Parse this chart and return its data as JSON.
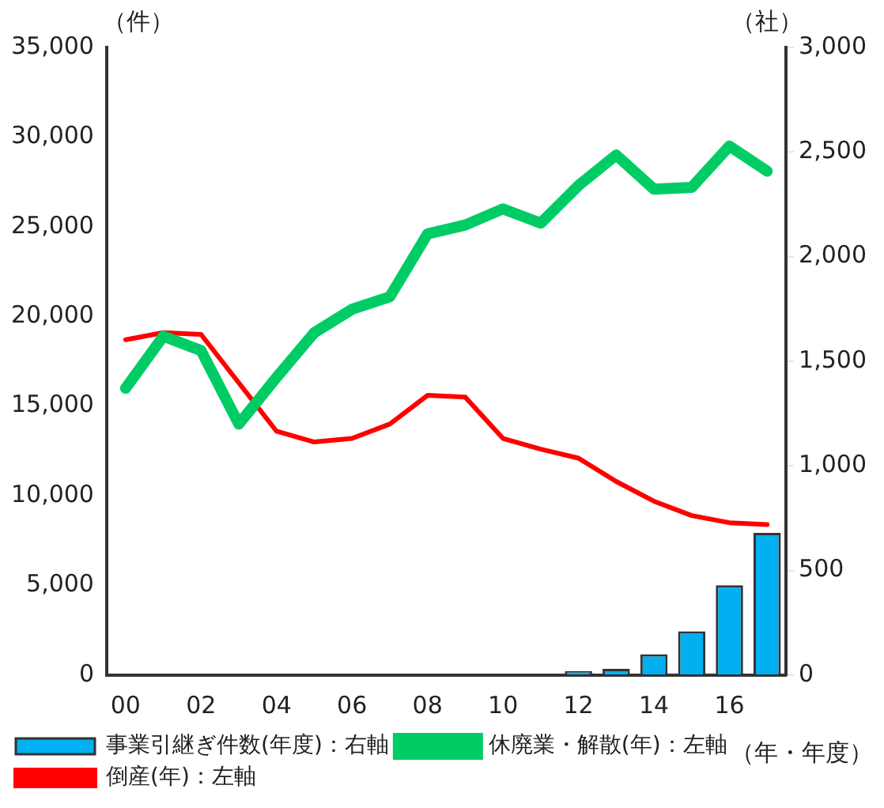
{
  "chart_data": {
    "type": "line",
    "ylabel": "（件）",
    "y2label": "（社）",
    "xlabel": "（年・年度）",
    "categories": [
      "00",
      null,
      "02",
      null,
      "04",
      null,
      "06",
      null,
      "08",
      null,
      "10",
      null,
      "12",
      null,
      "14",
      null,
      "16",
      null
    ],
    "ylim": [
      0,
      35000
    ],
    "yticks": [
      {
        "value": 0,
        "label": "0"
      },
      {
        "value": 5000,
        "label": "5,000"
      },
      {
        "value": 10000,
        "label": "10,000"
      },
      {
        "value": 15000,
        "label": "15,000"
      },
      {
        "value": 20000,
        "label": "20,000"
      },
      {
        "value": 25000,
        "label": "25,000"
      },
      {
        "value": 30000,
        "label": "30,000"
      },
      {
        "value": 35000,
        "label": "35,000"
      }
    ],
    "y2lim": [
      0,
      3000
    ],
    "y2ticks": [
      {
        "value": 0,
        "label": "0"
      },
      {
        "value": 500,
        "label": "500"
      },
      {
        "value": 1000,
        "label": "1,000"
      },
      {
        "value": 1500,
        "label": "1,500"
      },
      {
        "value": 2000,
        "label": "2,000"
      },
      {
        "value": 2500,
        "label": "2,500"
      },
      {
        "value": 3000,
        "label": "3,000"
      }
    ],
    "grid": false,
    "legend": "bottom",
    "marker": "none",
    "series": [
      {
        "name": "事業引継ぎ件数(年度)：右軸",
        "type": "bar",
        "axis": "y2",
        "color": "#00b0f0",
        "values": [
          null,
          null,
          null,
          null,
          null,
          null,
          null,
          null,
          null,
          null,
          null,
          null,
          20,
          30,
          100,
          210,
          430,
          680
        ]
      },
      {
        "name": "休廃業・解散(年)：左軸",
        "color": "#00cc66",
        "values": [
          16000,
          18900,
          18100,
          14000,
          16600,
          19100,
          20400,
          21100,
          24600,
          25100,
          26000,
          25200,
          27300,
          29000,
          27100,
          27200,
          29500,
          28100
        ]
      },
      {
        "name": "倒産(年)：左軸",
        "color": "#ff0000",
        "values": [
          18700,
          19100,
          19000,
          16300,
          13600,
          13000,
          13200,
          14000,
          15600,
          15500,
          13200,
          12600,
          12100,
          10800,
          9700,
          8900,
          8500,
          8400
        ]
      }
    ]
  }
}
